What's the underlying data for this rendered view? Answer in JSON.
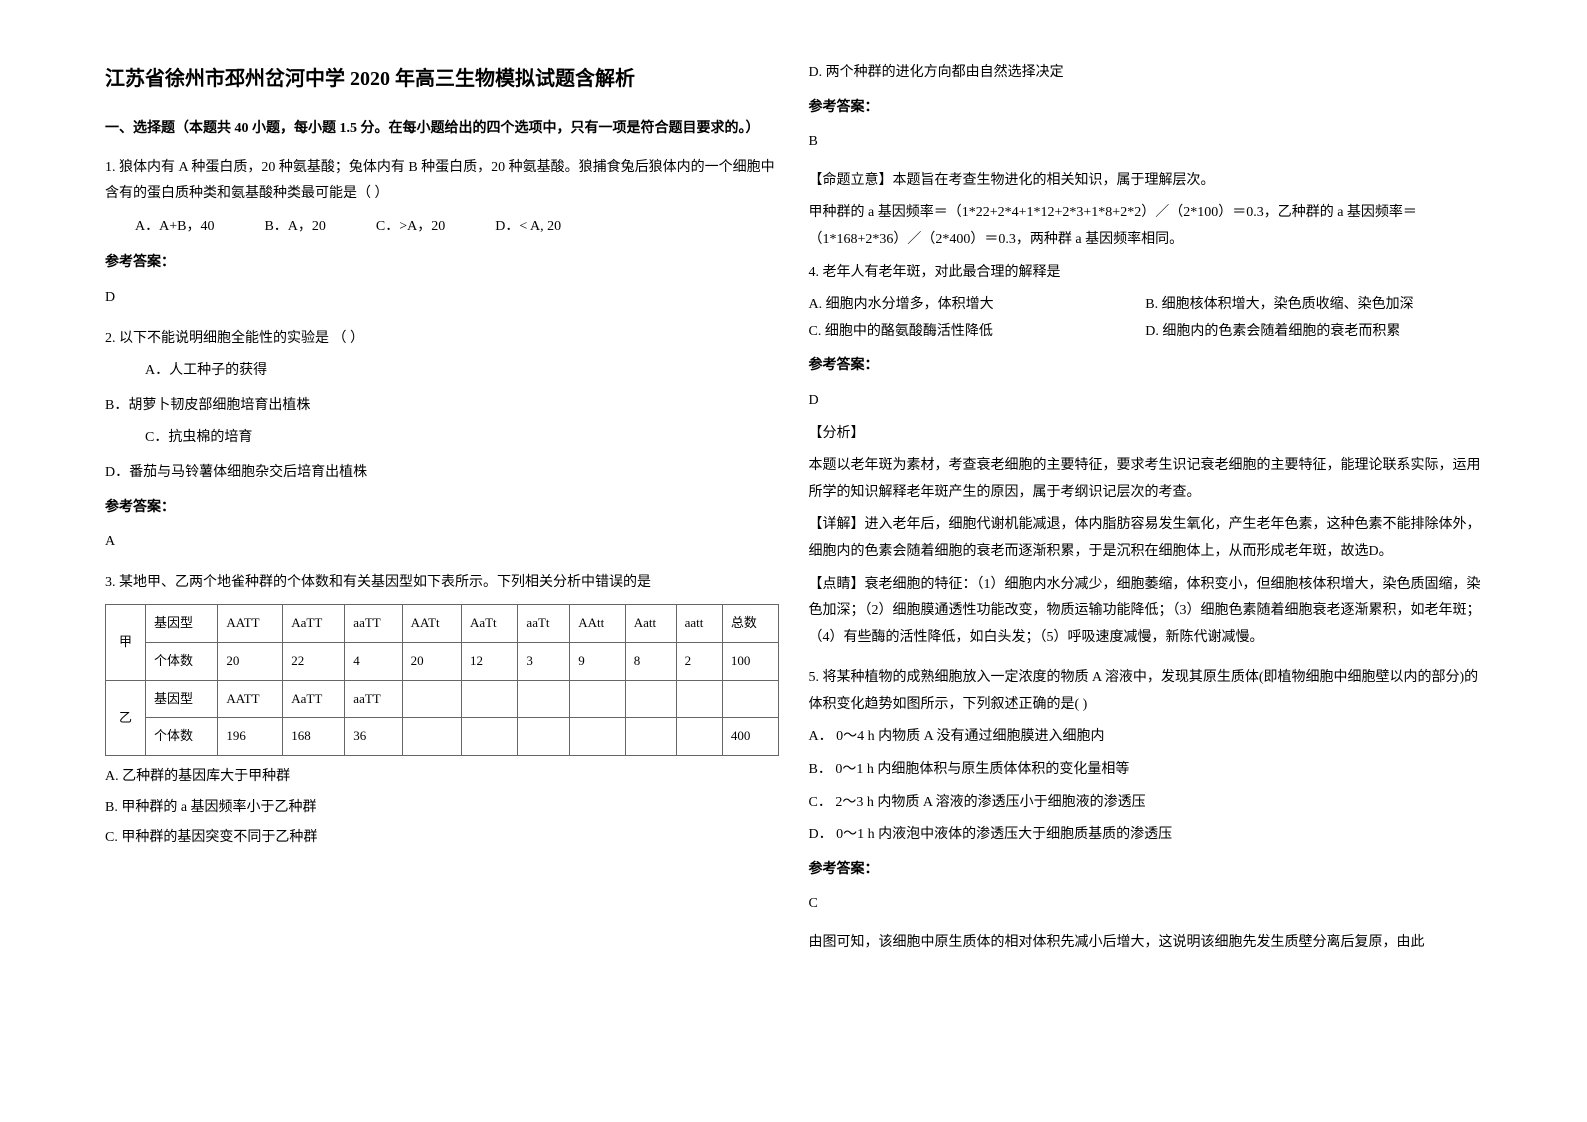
{
  "title": "江苏省徐州市邳州岔河中学 2020 年高三生物模拟试题含解析",
  "section_header": "一、选择题（本题共 40 小题，每小题 1.5 分。在每小题给出的四个选项中，只有一项是符合题目要求的。）",
  "q1": {
    "stem": "1. 狼体内有 A 种蛋白质，20 种氨基酸；兔体内有 B 种蛋白质，20 种氨基酸。狼捕食兔后狼体内的一个细胞中含有的蛋白质种类和氨基酸种类最可能是（ ）",
    "opts": [
      "A．A+B，40",
      "B．A，20",
      "C．>A，20",
      "D．< A, 20"
    ],
    "answer_label": "参考答案：",
    "answer": "D"
  },
  "q2": {
    "stem": "2. 以下不能说明细胞全能性的实验是                           （     ）",
    "opts": [
      "A．人工种子的获得",
      "B．胡萝卜韧皮部细胞培育出植株",
      "C．抗虫棉的培育",
      "D．番茄与马铃薯体细胞杂交后培育出植株"
    ],
    "answer_label": "参考答案：",
    "answer": "A"
  },
  "q3": {
    "stem": "3. 某地甲、乙两个地雀种群的个体数和有关基因型如下表所示。下列相关分析中错误的是",
    "table": {
      "row1_label": "甲",
      "row1_h": "基因型",
      "row1_cells": [
        "AATT",
        "AaTT",
        "aaTT",
        "AATt",
        "AaTt",
        "aaTt",
        "AAtt",
        "Aatt",
        "aatt",
        "总数"
      ],
      "row2_h": "个体数",
      "row2_cells": [
        "20",
        "22",
        "4",
        "20",
        "12",
        "3",
        "9",
        "8",
        "2",
        "100"
      ],
      "row3_label": "乙",
      "row3_h": "基因型",
      "row3_cells": [
        "AATT",
        "AaTT",
        "aaTT",
        "",
        "",
        "",
        "",
        "",
        "",
        ""
      ],
      "row4_h": "个体数",
      "row4_cells": [
        "196",
        "168",
        "36",
        "",
        "",
        "",
        "",
        "",
        "",
        "400"
      ]
    },
    "opts": [
      "A. 乙种群的基因库大于甲种群",
      "B. 甲种群的 a 基因频率小于乙种群",
      "C. 甲种群的基因突变不同于乙种群",
      "D. 两个种群的进化方向都由自然选择决定"
    ],
    "answer_label": "参考答案：",
    "answer": "B",
    "explain1": "【命题立意】本题旨在考查生物进化的相关知识，属于理解层次。",
    "explain2": "甲种群的 a 基因频率＝（1*22+2*4+1*12+2*3+1*8+2*2）／（2*100）＝0.3，乙种群的 a 基因频率＝（1*168+2*36）／（2*400）＝0.3，两种群 a 基因频率相同。"
  },
  "q4": {
    "stem": "4. 老年人有老年斑，对此最合理的解释是",
    "optA": "A. 细胞内水分增多，体积增大",
    "optB": "B. 细胞核体积增大，染色质收缩、染色加深",
    "optC": "C. 细胞中的酪氨酸酶活性降低",
    "optD": "D. 细胞内的色素会随着细胞的衰老而积累",
    "answer_label": "参考答案：",
    "answer": "D",
    "fenxi_label": "【分析】",
    "fenxi": "本题以老年斑为素材，考查衰老细胞的主要特征，要求考生识记衰老细胞的主要特征，能理论联系实际，运用所学的知识解释老年斑产生的原因，属于考纲识记层次的考查。",
    "xiangjie": "【详解】进入老年后，细胞代谢机能减退，体内脂肪容易发生氧化，产生老年色素，这种色素不能排除体外，细胞内的色素会随着细胞的衰老而逐渐积累，于是沉积在细胞体上，从而形成老年斑，故选D。",
    "dianjing": "【点睛】衰老细胞的特征：（1）细胞内水分减少，细胞萎缩，体积变小，但细胞核体积增大，染色质固缩，染色加深；（2）细胞膜通透性功能改变，物质运输功能降低；（3）细胞色素随着细胞衰老逐渐累积，如老年斑；（4）有些酶的活性降低，如白头发；（5）呼吸速度减慢，新陈代谢减慢。"
  },
  "q5": {
    "stem": "5. 将某种植物的成熟细胞放入一定浓度的物质 A 溶液中，发现其原生质体(即植物细胞中细胞壁以内的部分)的体积变化趋势如图所示，下列叙述正确的是(      )",
    "opts": [
      "A． 0～4 h 内物质 A 没有通过细胞膜进入细胞内",
      "B． 0～1 h 内细胞体积与原生质体体积的变化量相等",
      "C． 2～3 h 内物质 A 溶液的渗透压小于细胞液的渗透压",
      "D． 0～1 h 内液泡中液体的渗透压大于细胞质基质的渗透压"
    ],
    "answer_label": "参考答案：",
    "answer": "C",
    "explain": "由图可知，该细胞中原生质体的相对体积先减小后增大，这说明该细胞先发生质壁分离后复原，由此"
  }
}
